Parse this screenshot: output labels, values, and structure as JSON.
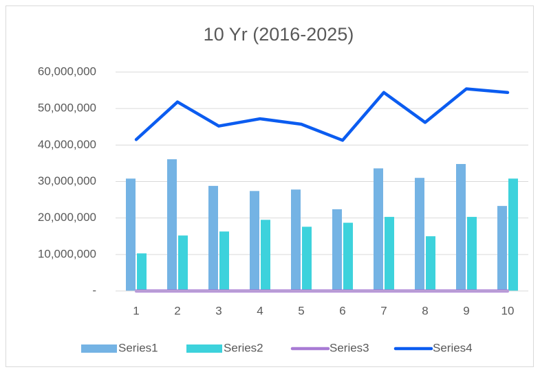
{
  "chart_data": {
    "type": "combo",
    "title": "10 Yr (2016-2025)",
    "categories": [
      "1",
      "2",
      "3",
      "4",
      "5",
      "6",
      "7",
      "8",
      "9",
      "10"
    ],
    "series": [
      {
        "name": "Series1",
        "type": "bar",
        "color": "#74b3e4",
        "values": [
          30800000,
          36100000,
          28800000,
          27400000,
          27800000,
          22400000,
          33600000,
          31000000,
          34800000,
          23300000
        ]
      },
      {
        "name": "Series2",
        "type": "bar",
        "color": "#3dd2dc",
        "values": [
          10300000,
          15200000,
          16300000,
          19500000,
          17600000,
          18700000,
          20300000,
          15000000,
          20300000,
          30800000
        ]
      },
      {
        "name": "Series3",
        "type": "line",
        "color": "#a87bd4",
        "values": [
          0,
          0,
          0,
          0,
          0,
          0,
          0,
          0,
          0,
          0
        ]
      },
      {
        "name": "Series4",
        "type": "line",
        "color": "#0b5cf0",
        "values": [
          41500000,
          51800000,
          45200000,
          47200000,
          45700000,
          41300000,
          54400000,
          46200000,
          55400000,
          54400000
        ]
      }
    ],
    "ylim": [
      0,
      60000000
    ],
    "yticks": [
      {
        "value": 0,
        "label": "-"
      },
      {
        "value": 10000000,
        "label": "10,000,000"
      },
      {
        "value": 20000000,
        "label": "20,000,000"
      },
      {
        "value": 30000000,
        "label": "30,000,000"
      },
      {
        "value": 40000000,
        "label": "40,000,000"
      },
      {
        "value": 50000000,
        "label": "50,000,000"
      },
      {
        "value": 60000000,
        "label": "60,000,000"
      }
    ],
    "grid": true,
    "legend": "bottom"
  }
}
